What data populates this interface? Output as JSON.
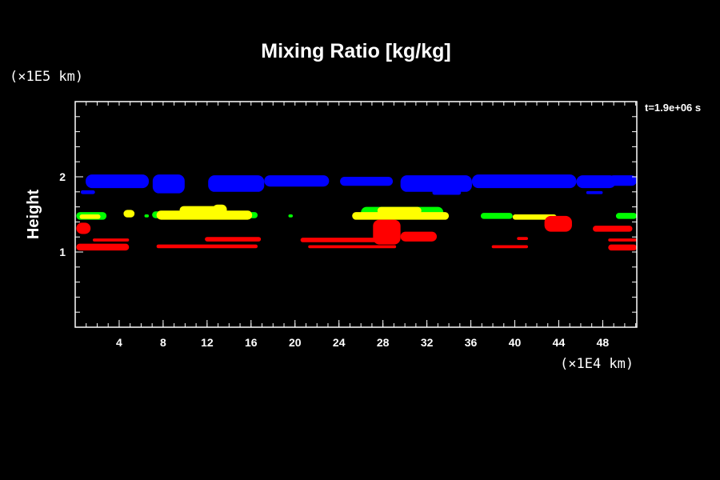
{
  "chart_data": {
    "type": "heatmap",
    "title": "Mixing Ratio [kg/kg]",
    "xlabel": "",
    "ylabel": "Height",
    "x_unit": "(×1E4 km)",
    "y_unit": "(×1E5 km)",
    "time_label": "t=1.9e+06 s",
    "xlim": [
      0,
      51.1
    ],
    "ylim": [
      0,
      3
    ],
    "x_ticks": [
      4,
      8,
      12,
      16,
      20,
      24,
      28,
      32,
      36,
      40,
      44,
      48
    ],
    "y_ticks": [
      1,
      2
    ],
    "x_minor_step": 1,
    "y_minor_step": 0.2,
    "colors": {
      "blue": "#0000ff",
      "green": "#00ff00",
      "yellow": "#ffff00",
      "red": "#ff0000"
    },
    "regions": [
      {
        "color": "blue",
        "x": [
          0.95,
          6.7
        ],
        "y": [
          1.85,
          2.03
        ]
      },
      {
        "color": "blue",
        "x": [
          7.05,
          9.96
        ],
        "y": [
          1.78,
          2.03
        ]
      },
      {
        "color": "blue",
        "x": [
          12.1,
          17.2
        ],
        "y": [
          1.8,
          2.02
        ]
      },
      {
        "color": "blue",
        "x": [
          17.2,
          23.1
        ],
        "y": [
          1.87,
          2.02
        ]
      },
      {
        "color": "blue",
        "x": [
          24.1,
          28.9
        ],
        "y": [
          1.88,
          2.0
        ]
      },
      {
        "color": "blue",
        "x": [
          29.6,
          36.1
        ],
        "y": [
          1.8,
          2.02
        ]
      },
      {
        "color": "blue",
        "x": [
          32.5,
          35.1
        ],
        "y": [
          1.76,
          1.82
        ]
      },
      {
        "color": "blue",
        "x": [
          36.1,
          45.6
        ],
        "y": [
          1.85,
          2.03
        ]
      },
      {
        "color": "blue",
        "x": [
          45.6,
          49.2
        ],
        "y": [
          1.85,
          2.02
        ]
      },
      {
        "color": "blue",
        "x": [
          48.5,
          51.1
        ],
        "y": [
          1.88,
          2.02
        ]
      },
      {
        "color": "blue",
        "x": [
          0.5,
          1.8
        ],
        "y": [
          1.77,
          1.82
        ]
      },
      {
        "color": "blue",
        "x": [
          46.5,
          48.0
        ],
        "y": [
          1.77,
          1.81
        ]
      },
      {
        "color": "green",
        "x": [
          0.1,
          2.85
        ],
        "y": [
          1.43,
          1.53
        ]
      },
      {
        "color": "green",
        "x": [
          7.0,
          8.2
        ],
        "y": [
          1.45,
          1.54
        ]
      },
      {
        "color": "green",
        "x": [
          14.5,
          16.6
        ],
        "y": [
          1.45,
          1.53
        ]
      },
      {
        "color": "green",
        "x": [
          26.0,
          33.5
        ],
        "y": [
          1.45,
          1.6
        ]
      },
      {
        "color": "green",
        "x": [
          36.9,
          39.8
        ],
        "y": [
          1.44,
          1.52
        ]
      },
      {
        "color": "green",
        "x": [
          49.2,
          51.1
        ],
        "y": [
          1.44,
          1.52
        ]
      },
      {
        "color": "green",
        "x": [
          19.4,
          19.8
        ],
        "y": [
          1.46,
          1.5
        ]
      },
      {
        "color": "green",
        "x": [
          6.3,
          6.7
        ],
        "y": [
          1.46,
          1.5
        ]
      },
      {
        "color": "yellow",
        "x": [
          0.4,
          2.3
        ],
        "y": [
          1.44,
          1.5
        ]
      },
      {
        "color": "yellow",
        "x": [
          4.4,
          5.4
        ],
        "y": [
          1.46,
          1.56
        ]
      },
      {
        "color": "yellow",
        "x": [
          7.4,
          16.1
        ],
        "y": [
          1.43,
          1.55
        ]
      },
      {
        "color": "yellow",
        "x": [
          9.5,
          13.0
        ],
        "y": [
          1.5,
          1.61
        ]
      },
      {
        "color": "yellow",
        "x": [
          12.5,
          13.8
        ],
        "y": [
          1.5,
          1.63
        ]
      },
      {
        "color": "yellow",
        "x": [
          25.2,
          34.0
        ],
        "y": [
          1.43,
          1.53
        ]
      },
      {
        "color": "yellow",
        "x": [
          27.5,
          31.5
        ],
        "y": [
          1.5,
          1.6
        ]
      },
      {
        "color": "yellow",
        "x": [
          39.8,
          43.8
        ],
        "y": [
          1.43,
          1.5
        ]
      },
      {
        "color": "red",
        "x": [
          0.1,
          1.4
        ],
        "y": [
          1.24,
          1.39
        ]
      },
      {
        "color": "red",
        "x": [
          0.1,
          4.9
        ],
        "y": [
          1.02,
          1.11
        ]
      },
      {
        "color": "red",
        "x": [
          1.6,
          4.9
        ],
        "y": [
          1.14,
          1.18
        ]
      },
      {
        "color": "red",
        "x": [
          7.4,
          16.6
        ],
        "y": [
          1.05,
          1.1
        ]
      },
      {
        "color": "red",
        "x": [
          11.8,
          16.9
        ],
        "y": [
          1.14,
          1.2
        ]
      },
      {
        "color": "red",
        "x": [
          20.5,
          28.9
        ],
        "y": [
          1.13,
          1.19
        ]
      },
      {
        "color": "red",
        "x": [
          21.2,
          29.2
        ],
        "y": [
          1.05,
          1.09
        ]
      },
      {
        "color": "red",
        "x": [
          27.1,
          29.6
        ],
        "y": [
          1.1,
          1.43
        ]
      },
      {
        "color": "red",
        "x": [
          29.6,
          32.9
        ],
        "y": [
          1.14,
          1.27
        ]
      },
      {
        "color": "red",
        "x": [
          37.9,
          41.2
        ],
        "y": [
          1.05,
          1.09
        ]
      },
      {
        "color": "red",
        "x": [
          40.2,
          41.2
        ],
        "y": [
          1.16,
          1.2
        ]
      },
      {
        "color": "red",
        "x": [
          42.7,
          45.2
        ],
        "y": [
          1.27,
          1.48
        ]
      },
      {
        "color": "red",
        "x": [
          47.1,
          50.7
        ],
        "y": [
          1.27,
          1.35
        ]
      },
      {
        "color": "red",
        "x": [
          48.5,
          51.1
        ],
        "y": [
          1.14,
          1.18
        ]
      },
      {
        "color": "red",
        "x": [
          48.5,
          51.1
        ],
        "y": [
          1.02,
          1.1
        ]
      }
    ]
  }
}
